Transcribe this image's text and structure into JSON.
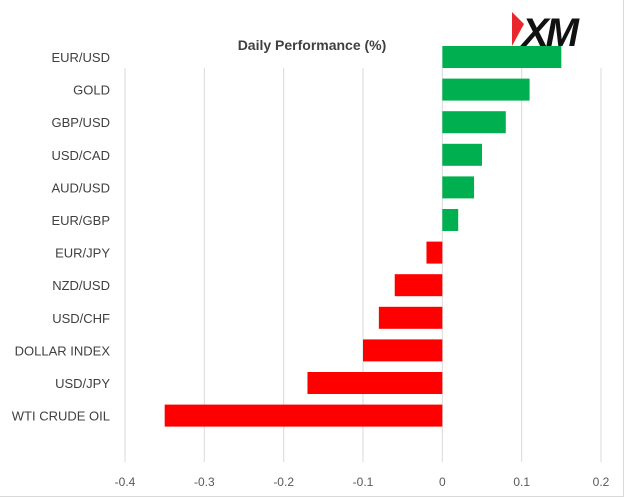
{
  "chart_data": {
    "type": "bar",
    "orientation": "horizontal",
    "title": "Daily Performance (%)",
    "xlabel": "",
    "ylabel": "",
    "categories": [
      "EUR/USD",
      "GOLD",
      "GBP/USD",
      "USD/CAD",
      "AUD/USD",
      "EUR/GBP",
      "EUR/JPY",
      "NZD/USD",
      "USD/CHF",
      "DOLLAR INDEX",
      "USD/JPY",
      "WTI CRUDE OIL"
    ],
    "values": [
      0.15,
      0.11,
      0.08,
      0.05,
      0.04,
      0.02,
      -0.02,
      -0.06,
      -0.08,
      -0.1,
      -0.17,
      -0.35
    ],
    "xlim": [
      -0.4,
      0.2
    ],
    "xticks": [
      -0.4,
      -0.3,
      -0.2,
      -0.1,
      0,
      0.1,
      0.2
    ],
    "xtick_labels": [
      "-0.4",
      "-0.3",
      "-0.2",
      "-0.1",
      "0",
      "0.1",
      "0.2"
    ],
    "grid": true,
    "colors": {
      "positive": "#00b050",
      "negative": "#ff0000",
      "grid": "#d9d9d9",
      "text": "#404040"
    }
  },
  "logo": {
    "text": "XM",
    "accent": "#e8262b"
  }
}
